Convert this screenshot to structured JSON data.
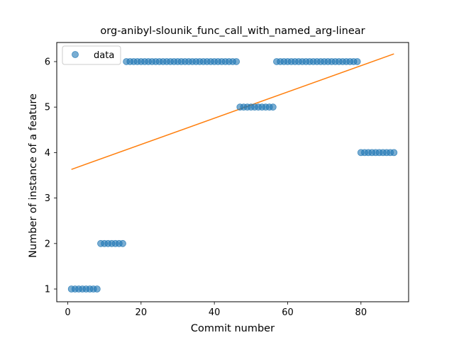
{
  "chart_data": {
    "type": "scatter",
    "title": "org-anibyl-slounik_func_call_with_named_arg-linear",
    "xlabel": "Commit number",
    "ylabel": "Number of instance of a feature",
    "xlim": [
      -3,
      93
    ],
    "ylim": [
      0.72,
      6.42
    ],
    "xticks": [
      0,
      20,
      40,
      60,
      80
    ],
    "yticks": [
      1,
      2,
      3,
      4,
      5,
      6
    ],
    "grid": false,
    "legend": {
      "position": "top-left",
      "entries": [
        "data"
      ]
    },
    "colors": {
      "data": "#1f77b4",
      "fit": "#ff7f0e"
    },
    "series": [
      {
        "name": "data",
        "kind": "scatter",
        "x": [
          1,
          2,
          3,
          4,
          5,
          6,
          7,
          8,
          9,
          10,
          11,
          12,
          13,
          14,
          15,
          16,
          17,
          18,
          19,
          20,
          21,
          22,
          23,
          24,
          25,
          26,
          27,
          28,
          29,
          30,
          31,
          32,
          33,
          34,
          35,
          36,
          37,
          38,
          39,
          40,
          41,
          42,
          43,
          44,
          45,
          46,
          47,
          48,
          49,
          50,
          51,
          52,
          53,
          54,
          55,
          56,
          57,
          58,
          59,
          60,
          61,
          62,
          63,
          64,
          65,
          66,
          67,
          68,
          69,
          70,
          71,
          72,
          73,
          74,
          75,
          76,
          77,
          78,
          79,
          80,
          81,
          82,
          83,
          84,
          85,
          86,
          87,
          88,
          89
        ],
        "y": [
          1,
          1,
          1,
          1,
          1,
          1,
          1,
          1,
          2,
          2,
          2,
          2,
          2,
          2,
          2,
          6,
          6,
          6,
          6,
          6,
          6,
          6,
          6,
          6,
          6,
          6,
          6,
          6,
          6,
          6,
          6,
          6,
          6,
          6,
          6,
          6,
          6,
          6,
          6,
          6,
          6,
          6,
          6,
          6,
          6,
          6,
          5,
          5,
          5,
          5,
          5,
          5,
          5,
          5,
          5,
          5,
          6,
          6,
          6,
          6,
          6,
          6,
          6,
          6,
          6,
          6,
          6,
          6,
          6,
          6,
          6,
          6,
          6,
          6,
          6,
          6,
          6,
          6,
          6,
          4,
          4,
          4,
          4,
          4,
          4,
          4,
          4,
          4,
          4
        ]
      },
      {
        "kind": "line",
        "x": [
          1,
          89
        ],
        "y": [
          3.63,
          6.17
        ]
      }
    ]
  }
}
